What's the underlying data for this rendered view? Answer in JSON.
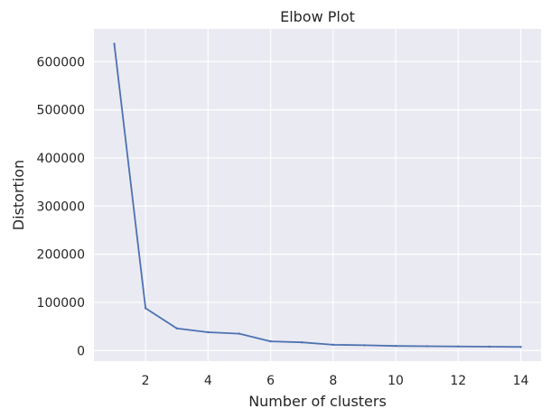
{
  "chart_data": {
    "type": "line",
    "title": "Elbow Plot",
    "xlabel": "Number of clusters",
    "ylabel": "Distortion",
    "x": [
      1,
      2,
      3,
      4,
      5,
      6,
      7,
      8,
      9,
      10,
      11,
      12,
      13,
      14
    ],
    "series": [
      {
        "values": [
          637000,
          88000,
          46000,
          38000,
          35000,
          19000,
          17000,
          12000,
          11000,
          9500,
          9000,
          8500,
          8000,
          7500
        ],
        "color": "#4c72b0"
      }
    ],
    "xticks": [
      2,
      4,
      6,
      8,
      10,
      12,
      14
    ],
    "xtick_labels": [
      "2",
      "4",
      "6",
      "8",
      "10",
      "12",
      "14"
    ],
    "yticks": [
      0,
      100000,
      200000,
      300000,
      400000,
      500000,
      600000
    ],
    "ytick_labels": [
      "0",
      "100000",
      "200000",
      "300000",
      "400000",
      "500000",
      "600000"
    ],
    "xlim": [
      0.35,
      14.65
    ],
    "ylim": [
      -22000,
      668000
    ],
    "grid": true,
    "background": "#eaeaf2",
    "grid_color": "#ffffff"
  }
}
